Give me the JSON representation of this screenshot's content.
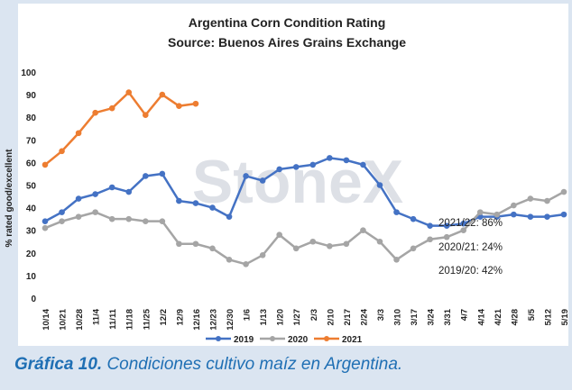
{
  "chart_data": {
    "type": "line",
    "title": "Argentina Corn Condition Rating",
    "subtitle": "Source: Buenos Aires Grains Exchange",
    "y_label": "% rated good/excellent",
    "watermark": "StoneX",
    "categories": [
      "10/14",
      "10/21",
      "10/28",
      "11/4",
      "11/11",
      "11/18",
      "11/25",
      "12/2",
      "12/9",
      "12/16",
      "12/23",
      "12/30",
      "1/6",
      "1/13",
      "1/20",
      "1/27",
      "2/3",
      "2/10",
      "2/17",
      "2/24",
      "3/3",
      "3/10",
      "3/17",
      "3/24",
      "3/31",
      "4/7",
      "4/14",
      "4/21",
      "4/28",
      "5/5",
      "5/12",
      "5/19"
    ],
    "series": [
      {
        "name": "2019",
        "color": "#4472c4",
        "values": [
          34,
          38,
          44,
          46,
          49,
          47,
          54,
          55,
          43,
          42,
          40,
          36,
          54,
          52,
          57,
          58,
          59,
          62,
          61,
          59,
          50,
          38,
          35,
          32,
          32,
          33,
          36,
          36,
          37,
          36,
          36,
          37
        ]
      },
      {
        "name": "2020",
        "color": "#a5a5a5",
        "values": [
          31,
          34,
          36,
          38,
          35,
          35,
          34,
          34,
          24,
          24,
          22,
          17,
          15,
          19,
          28,
          22,
          25,
          23,
          24,
          30,
          25,
          17,
          22,
          26,
          27,
          30,
          38,
          37,
          41,
          44,
          43,
          47
        ]
      },
      {
        "name": "2021",
        "color": "#ed7d31",
        "values": [
          59,
          65,
          73,
          82,
          84,
          91,
          81,
          90,
          85,
          86,
          null,
          null,
          null,
          null,
          null,
          null,
          null,
          null,
          null,
          null,
          null,
          null,
          null,
          null,
          null,
          null,
          null,
          null,
          null,
          null,
          null,
          null
        ]
      }
    ],
    "ylim": [
      0,
      100
    ],
    "yticks": [
      0,
      10,
      20,
      30,
      40,
      50,
      60,
      70,
      80,
      90,
      100
    ],
    "grid": false,
    "legend": "bottom",
    "annotations": [
      "2021/22: 86%",
      "2020/21: 24%",
      "2019/20: 42%"
    ]
  },
  "caption": {
    "label": "Gráfica 10.",
    "text": "Condiciones cultivo maíz en Argentina."
  }
}
